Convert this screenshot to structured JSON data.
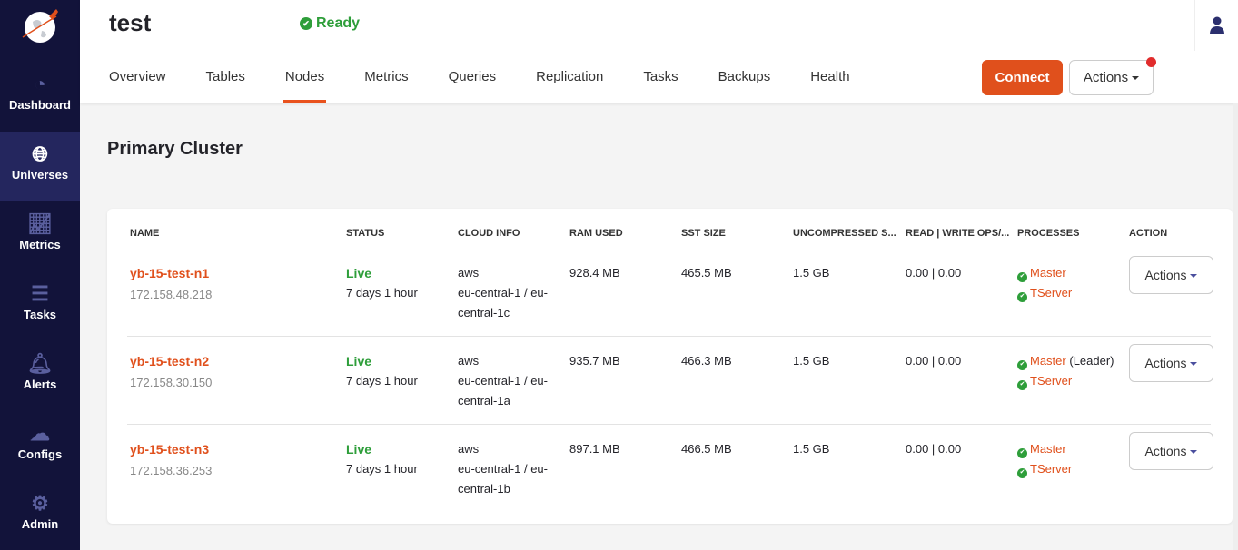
{
  "sidebar": {
    "items": [
      {
        "label": "Dashboard",
        "icon": "dashboard-gauge-icon"
      },
      {
        "label": "Universes",
        "icon": "globe-icon",
        "active": true
      },
      {
        "label": "Metrics",
        "icon": "line-chart-icon"
      },
      {
        "label": "Tasks",
        "icon": "list-icon"
      },
      {
        "label": "Alerts",
        "icon": "bell-icon"
      },
      {
        "label": "Configs",
        "icon": "cloud-upload-icon"
      },
      {
        "label": "Admin",
        "icon": "gear-icon"
      }
    ]
  },
  "header": {
    "title": "test",
    "status": "Ready",
    "tabs": [
      "Overview",
      "Tables",
      "Nodes",
      "Metrics",
      "Queries",
      "Replication",
      "Tasks",
      "Backups",
      "Health"
    ],
    "active_tab": "Nodes",
    "connect_label": "Connect",
    "actions_label": "Actions"
  },
  "section_title": "Primary Cluster",
  "table": {
    "headers": [
      "NAME",
      "STATUS",
      "CLOUD INFO",
      "RAM USED",
      "SST SIZE",
      "UNCOMPRESSED S...",
      "READ | WRITE OPS/...",
      "PROCESSES",
      "ACTION"
    ],
    "rows": [
      {
        "name": "yb-15-test-n1",
        "ip": "172.158.48.218",
        "status": "Live",
        "uptime": "7 days 1 hour",
        "cloud": "aws",
        "region1": "eu-central-1 / eu-",
        "region2": "central-1c",
        "ram": "928.4 MB",
        "sst": "465.5 MB",
        "uncompressed": "1.5 GB",
        "ops": "0.00 | 0.00",
        "master": "Master",
        "leader": "",
        "tserver": "TServer",
        "action": "Actions"
      },
      {
        "name": "yb-15-test-n2",
        "ip": "172.158.30.150",
        "status": "Live",
        "uptime": "7 days 1 hour",
        "cloud": "aws",
        "region1": "eu-central-1 / eu-",
        "region2": "central-1a",
        "ram": "935.7 MB",
        "sst": "466.3 MB",
        "uncompressed": "1.5 GB",
        "ops": "0.00 | 0.00",
        "master": "Master",
        "leader": "(Leader)",
        "tserver": "TServer",
        "action": "Actions"
      },
      {
        "name": "yb-15-test-n3",
        "ip": "172.158.36.253",
        "status": "Live",
        "uptime": "7 days 1 hour",
        "cloud": "aws",
        "region1": "eu-central-1 / eu-",
        "region2": "central-1b",
        "ram": "897.1 MB",
        "sst": "466.5 MB",
        "uncompressed": "1.5 GB",
        "ops": "0.00 | 0.00",
        "master": "Master",
        "leader": "",
        "tserver": "TServer",
        "action": "Actions"
      }
    ]
  },
  "colors": {
    "accent": "#e0501c",
    "sidebar": "#12133a",
    "live": "#2e9e3a"
  }
}
